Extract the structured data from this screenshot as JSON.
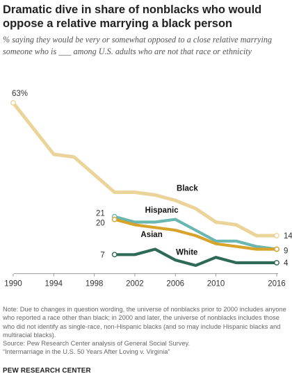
{
  "title": "Dramatic dive in share of nonblacks who would oppose a relative marrying a black person",
  "subtitle": "% saying they would be very or somewhat opposed to a close relative marrying someone who is ___ among U.S. adults who are not that race or ethnicity",
  "note": "Note: Due to changes in question wording, the universe of nonblacks prior to 2000 includes anyone who reported a race other than black; in 2000 and later, the universe of nonblacks includes those who did not identify as single-race, non-Hispanic blacks (and so may include Hispanic blacks and multiracial blacks).",
  "source": "Source: Pew Research Center analysis of General Social Survey.",
  "report": "“Intermarriage in the U.S. 50 Years After Loving v. Virginia”",
  "brand": "PEW RESEARCH CENTER",
  "chart_data": {
    "type": "line",
    "x_ticks": [
      1990,
      1994,
      1998,
      2002,
      2006,
      2010,
      2016
    ],
    "x_tick_labels": [
      "1990",
      "1994",
      "1998",
      "2002",
      "2006",
      "2010",
      "2016"
    ],
    "xlim": [
      1990,
      2016
    ],
    "ylim": [
      0,
      65
    ],
    "grid": false,
    "legend": "inline labels",
    "series": [
      {
        "name": "Black",
        "color": "#ebd49a",
        "points": [
          [
            1990,
            63
          ],
          [
            1994,
            44
          ],
          [
            1996,
            43
          ],
          [
            2000,
            30
          ],
          [
            2002,
            30
          ],
          [
            2004,
            29
          ],
          [
            2006,
            27
          ],
          [
            2008,
            24
          ],
          [
            2010,
            19
          ],
          [
            2012,
            18
          ],
          [
            2014,
            14
          ],
          [
            2016,
            14
          ]
        ],
        "start_label": "63%",
        "end_label": "14",
        "series_label": "Black"
      },
      {
        "name": "Hispanic",
        "color": "#6ab7b1",
        "points": [
          [
            2000,
            21
          ],
          [
            2002,
            19
          ],
          [
            2004,
            19
          ],
          [
            2006,
            20
          ],
          [
            2008,
            16
          ],
          [
            2010,
            12
          ],
          [
            2012,
            12
          ],
          [
            2014,
            10
          ],
          [
            2016,
            9
          ]
        ],
        "start_label": "21",
        "end_label": "",
        "series_label": "Hispanic"
      },
      {
        "name": "Asian",
        "color": "#d8a32a",
        "points": [
          [
            2000,
            20
          ],
          [
            2002,
            18
          ],
          [
            2004,
            17
          ],
          [
            2006,
            16
          ],
          [
            2008,
            14
          ],
          [
            2010,
            11
          ],
          [
            2012,
            10
          ],
          [
            2014,
            9
          ],
          [
            2016,
            9
          ]
        ],
        "start_label": "20",
        "end_label": "9",
        "series_label": "Asian"
      },
      {
        "name": "White",
        "color": "#2e6a57",
        "points": [
          [
            2000,
            7
          ],
          [
            2002,
            7
          ],
          [
            2004,
            9
          ],
          [
            2006,
            5
          ],
          [
            2008,
            3
          ],
          [
            2010,
            6
          ],
          [
            2012,
            4
          ],
          [
            2014,
            4
          ],
          [
            2016,
            4
          ]
        ],
        "start_label": "7",
        "end_label": "4",
        "series_label": "White"
      }
    ]
  }
}
